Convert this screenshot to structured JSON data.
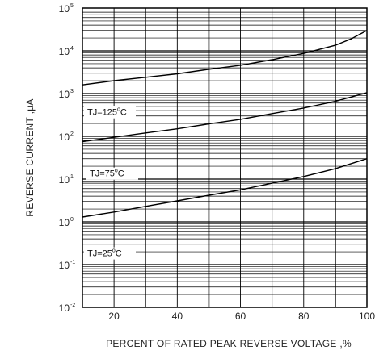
{
  "chart_data": {
    "type": "line",
    "title": "",
    "xlabel": "PERCENT OF RATED PEAK REVERSE VOLTAGE ,%",
    "ylabel": "REVERSE CURRENT ,μA",
    "x_scale": "linear",
    "y_scale": "log",
    "xlim": [
      10,
      100
    ],
    "ylim": [
      0.01,
      100000
    ],
    "x_ticks": [
      20,
      40,
      60,
      80,
      100
    ],
    "y_ticks": [
      {
        "base": "10",
        "exp": "-2",
        "value": 0.01
      },
      {
        "base": "10",
        "exp": "-1",
        "value": 0.1
      },
      {
        "base": "10",
        "exp": "0",
        "value": 1
      },
      {
        "base": "10",
        "exp": "1",
        "value": 10
      },
      {
        "base": "10",
        "exp": "2",
        "value": 100
      },
      {
        "base": "10",
        "exp": "3",
        "value": 1000
      },
      {
        "base": "10",
        "exp": "4",
        "value": 10000
      },
      {
        "base": "10",
        "exp": "5",
        "value": 100000
      }
    ],
    "grid": true,
    "series": [
      {
        "label": {
          "main": "TJ=125",
          "sup": "o",
          "unit": "C"
        },
        "x": [
          10,
          20,
          30,
          40,
          50,
          60,
          70,
          80,
          90,
          95,
          100
        ],
        "y": [
          1600,
          2000,
          2400,
          2900,
          3700,
          4600,
          6200,
          8700,
          13500,
          19000,
          30000
        ]
      },
      {
        "label": {
          "main": "TJ=75",
          "sup": "o",
          "unit": "C"
        },
        "x": [
          10,
          20,
          30,
          40,
          50,
          60,
          70,
          80,
          90,
          100
        ],
        "y": [
          75,
          95,
          120,
          150,
          195,
          250,
          340,
          460,
          660,
          1050
        ]
      },
      {
        "label": {
          "main": "TJ=25",
          "sup": "o",
          "unit": "C"
        },
        "x": [
          10,
          20,
          30,
          40,
          50,
          60,
          70,
          80,
          90,
          100
        ],
        "y": [
          1.3,
          1.7,
          2.3,
          3.1,
          4.2,
          5.6,
          8.0,
          11.5,
          17.5,
          30
        ]
      }
    ]
  }
}
